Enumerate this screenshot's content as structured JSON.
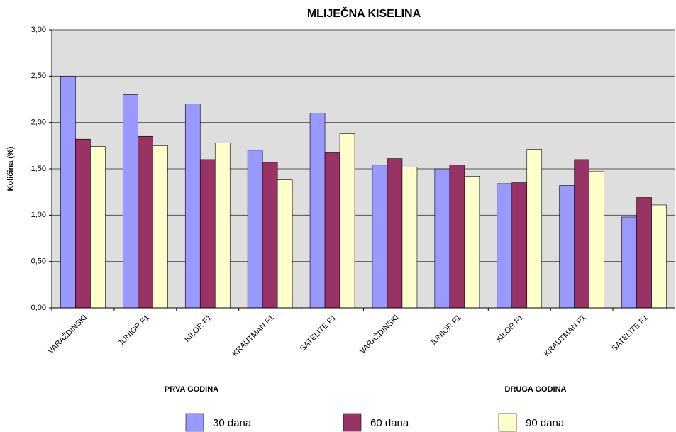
{
  "chart_data": {
    "type": "bar",
    "title": "MLIJEČNA KISELINA",
    "y_label": "Količina (%)",
    "categories": [
      "VARAŽDINSKI",
      "JUNIOR F1",
      "KILOR F1",
      "KRAUTMAN F1",
      "SATELITE F1",
      "VARAŽDINSKI",
      "JUNIOR F1",
      "KILOR F1",
      "KRAUTMAN F1",
      "SATELITE F1"
    ],
    "annotations": [
      "PRVA GODINA",
      "DRUGA GODINA"
    ],
    "series": [
      {
        "name": "30 dana",
        "color": "#9999ff",
        "values": [
          2.5,
          2.3,
          2.2,
          1.7,
          2.1,
          1.54,
          1.5,
          1.34,
          1.32,
          0.98
        ]
      },
      {
        "name": "60 dana",
        "color": "#993366",
        "values": [
          1.82,
          1.85,
          1.6,
          1.57,
          1.68,
          1.61,
          1.54,
          1.35,
          1.6,
          1.19
        ]
      },
      {
        "name": "90 dana",
        "color": "#ffffcc",
        "values": [
          1.74,
          1.75,
          1.78,
          1.38,
          1.88,
          1.52,
          1.42,
          1.71,
          1.47,
          1.11
        ]
      }
    ],
    "ylim": [
      0,
      3
    ],
    "yticks": [
      {
        "value": 0,
        "label": "0,00"
      },
      {
        "value": 0.5,
        "label": "0,50"
      },
      {
        "value": 1,
        "label": "1,00"
      },
      {
        "value": 1.5,
        "label": "1,50"
      },
      {
        "value": 2,
        "label": "2,00"
      },
      {
        "value": 2.5,
        "label": "2,50"
      },
      {
        "value": 3,
        "label": "3,00"
      }
    ],
    "grid": true,
    "legend": "bottom"
  }
}
